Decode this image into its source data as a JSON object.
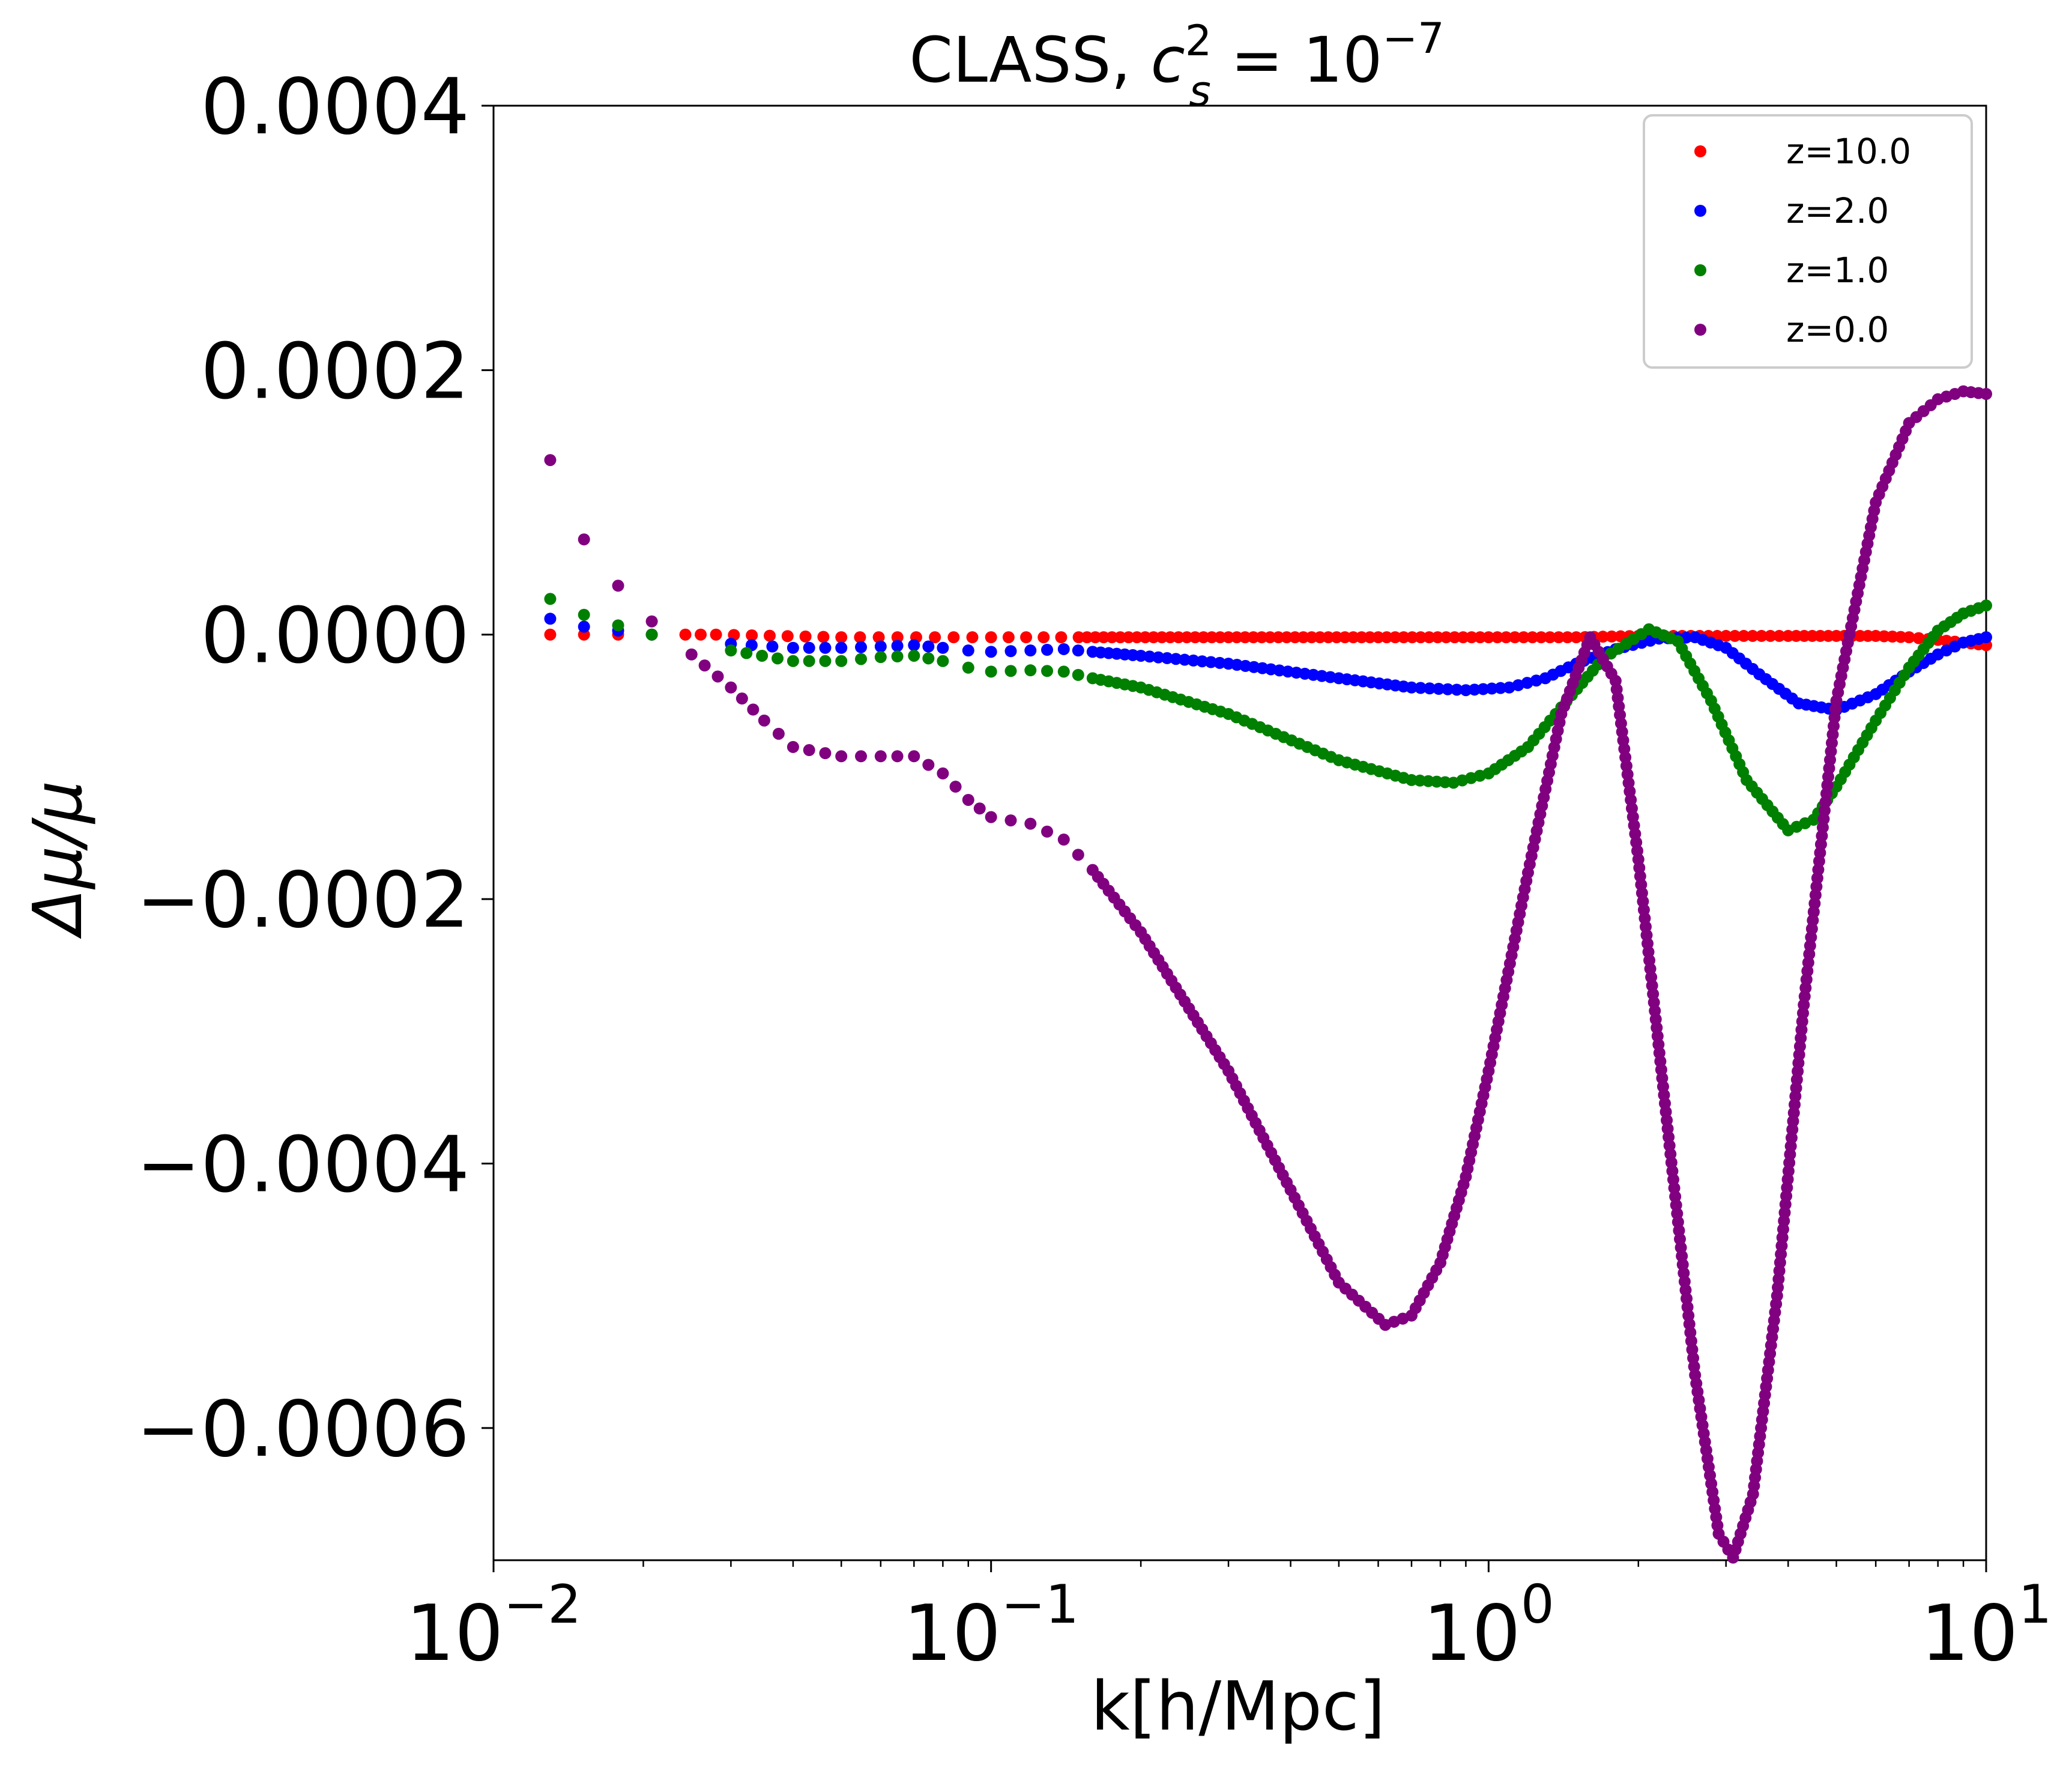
{
  "chart_data": {
    "type": "scatter",
    "title": "CLASS, c_s^2 = 10^-7",
    "title_parts": {
      "prefix": "CLASS, ",
      "var": "c",
      "sub": "s",
      "sup": "2",
      "eq": " = 10",
      "exp": "−7"
    },
    "xlabel": "k[h/Mpc]",
    "ylabel": "Δμ/μ",
    "x_scale": "log",
    "xlim": [
      0.01,
      10
    ],
    "ylim": [
      -0.0007,
      0.0004
    ],
    "y_ticks": [
      0.0004,
      0.0002,
      0.0,
      -0.0002,
      -0.0004,
      -0.0006
    ],
    "y_tick_labels": [
      "0.0004",
      "0.0002",
      "0.0000",
      "−0.0002",
      "−0.0004",
      "−0.0006"
    ],
    "x_ticks": [
      {
        "value": 0.01,
        "base": "10",
        "exp": "−2"
      },
      {
        "value": 0.1,
        "base": "10",
        "exp": "−1"
      },
      {
        "value": 1,
        "base": "10",
        "exp": "0"
      },
      {
        "value": 10,
        "base": "10",
        "exp": "1"
      }
    ],
    "legend_position": "top-right",
    "grid": false,
    "series": [
      {
        "name": "z=10.0",
        "color": "#ff0000",
        "points": [
          [
            0.013,
            0.0
          ],
          [
            0.0152,
            0.0
          ],
          [
            0.0178,
            0.0
          ],
          [
            0.0208,
            0.0
          ],
          [
            0.0243,
            0.0
          ],
          [
            0.028,
            0.0
          ],
          [
            0.05,
            -2e-06
          ],
          [
            0.1,
            -2e-06
          ],
          [
            0.15,
            -2e-06
          ],
          [
            0.3,
            -2e-06
          ],
          [
            0.6,
            -2e-06
          ],
          [
            1.0,
            -2e-06
          ],
          [
            1.5,
            -2e-06
          ],
          [
            2.0,
            -1e-06
          ],
          [
            3.0,
            -1e-06
          ],
          [
            4.0,
            -1e-06
          ],
          [
            5.0,
            -1e-06
          ],
          [
            6.0,
            -1e-06
          ],
          [
            7.0,
            -2e-06
          ],
          [
            8.0,
            -4e-06
          ],
          [
            9.0,
            -6e-06
          ],
          [
            10.0,
            -8e-06
          ]
        ]
      },
      {
        "name": "z=2.0",
        "color": "#0000ff",
        "points": [
          [
            0.013,
            1.2e-05
          ],
          [
            0.0152,
            6e-06
          ],
          [
            0.0178,
            3e-06
          ],
          [
            0.0208,
            0.0
          ],
          [
            0.03,
            -7e-06
          ],
          [
            0.04,
            -1e-05
          ],
          [
            0.05,
            -1e-05
          ],
          [
            0.06,
            -9e-06
          ],
          [
            0.07,
            -8e-06
          ],
          [
            0.08,
            -1e-05
          ],
          [
            0.09,
            -1.2e-05
          ],
          [
            0.1,
            -1.3e-05
          ],
          [
            0.12,
            -1.2e-05
          ],
          [
            0.14,
            -1.1e-05
          ],
          [
            0.16,
            -1.3e-05
          ],
          [
            0.2,
            -1.6e-05
          ],
          [
            0.3,
            -2.2e-05
          ],
          [
            0.5,
            -3.3e-05
          ],
          [
            0.7,
            -4e-05
          ],
          [
            0.9,
            -4.2e-05
          ],
          [
            1.1,
            -4e-05
          ],
          [
            1.3,
            -3.3e-05
          ],
          [
            1.5,
            -2.2e-05
          ],
          [
            1.8,
            -1.1e-05
          ],
          [
            2.2,
            -3e-06
          ],
          [
            2.6,
            -2e-06
          ],
          [
            3.0,
            -1e-05
          ],
          [
            3.5,
            -3e-05
          ],
          [
            4.2,
            -5.2e-05
          ],
          [
            5.0,
            -5.7e-05
          ],
          [
            6.0,
            -4.5e-05
          ],
          [
            7.0,
            -2.8e-05
          ],
          [
            8.0,
            -1.5e-05
          ],
          [
            9.0,
            -6e-06
          ],
          [
            10.0,
            -2e-06
          ]
        ]
      },
      {
        "name": "z=1.0",
        "color": "#008000",
        "points": [
          [
            0.013,
            2.7e-05
          ],
          [
            0.0152,
            1.5e-05
          ],
          [
            0.0178,
            7e-06
          ],
          [
            0.0208,
            0.0
          ],
          [
            0.03,
            -1.2e-05
          ],
          [
            0.04,
            -2e-05
          ],
          [
            0.05,
            -2e-05
          ],
          [
            0.06,
            -1.7e-05
          ],
          [
            0.07,
            -1.6e-05
          ],
          [
            0.08,
            -2e-05
          ],
          [
            0.09,
            -2.5e-05
          ],
          [
            0.1,
            -2.8e-05
          ],
          [
            0.12,
            -2.7e-05
          ],
          [
            0.14,
            -2.8e-05
          ],
          [
            0.16,
            -3.3e-05
          ],
          [
            0.2,
            -4e-05
          ],
          [
            0.3,
            -6e-05
          ],
          [
            0.5,
            -9.5e-05
          ],
          [
            0.7,
            -0.00011
          ],
          [
            0.85,
            -0.000112
          ],
          [
            1.0,
            -0.000105
          ],
          [
            1.2,
            -8.5e-05
          ],
          [
            1.4,
            -5.5e-05
          ],
          [
            1.7,
            -1.8e-05
          ],
          [
            2.1,
            4e-06
          ],
          [
            2.4,
            -5e-06
          ],
          [
            2.8,
            -5e-05
          ],
          [
            3.3,
            -0.00011
          ],
          [
            4.0,
            -0.000148
          ],
          [
            4.5,
            -0.00014
          ],
          [
            5.0,
            -0.000115
          ],
          [
            6.0,
            -6.5e-05
          ],
          [
            7.0,
            -2.5e-05
          ],
          [
            8.0,
            3e-06
          ],
          [
            9.0,
            1.6e-05
          ],
          [
            10.0,
            2.2e-05
          ]
        ]
      },
      {
        "name": "z=0.0",
        "color": "#800080",
        "points": [
          [
            0.013,
            0.000132
          ],
          [
            0.0152,
            7.2e-05
          ],
          [
            0.0178,
            3.7e-05
          ],
          [
            0.0208,
            1e-05
          ],
          [
            0.025,
            -1.5e-05
          ],
          [
            0.03,
            -4e-05
          ],
          [
            0.035,
            -6.5e-05
          ],
          [
            0.04,
            -8.5e-05
          ],
          [
            0.05,
            -9.2e-05
          ],
          [
            0.06,
            -9.2e-05
          ],
          [
            0.07,
            -9.2e-05
          ],
          [
            0.08,
            -0.000105
          ],
          [
            0.09,
            -0.000125
          ],
          [
            0.1,
            -0.000138
          ],
          [
            0.12,
            -0.000143
          ],
          [
            0.14,
            -0.000155
          ],
          [
            0.16,
            -0.000178
          ],
          [
            0.2,
            -0.000225
          ],
          [
            0.3,
            -0.00033
          ],
          [
            0.4,
            -0.00042
          ],
          [
            0.5,
            -0.00049
          ],
          [
            0.62,
            -0.000522
          ],
          [
            0.7,
            -0.000515
          ],
          [
            0.8,
            -0.000475
          ],
          [
            0.9,
            -0.00041
          ],
          [
            1.0,
            -0.00033
          ],
          [
            1.2,
            -0.00018
          ],
          [
            1.4,
            -6e-05
          ],
          [
            1.6,
            -2e-06
          ],
          [
            1.8,
            -3.5e-05
          ],
          [
            2.0,
            -0.00017
          ],
          [
            2.3,
            -0.00038
          ],
          [
            2.6,
            -0.00056
          ],
          [
            2.9,
            -0.00068
          ],
          [
            3.1,
            -0.000698
          ],
          [
            3.4,
            -0.00065
          ],
          [
            3.8,
            -0.0005
          ],
          [
            4.3,
            -0.00028
          ],
          [
            5.0,
            -5e-05
          ],
          [
            6.0,
            0.0001
          ],
          [
            7.0,
            0.00016
          ],
          [
            8.0,
            0.000178
          ],
          [
            9.0,
            0.000184
          ],
          [
            10.0,
            0.000182
          ]
        ]
      }
    ]
  }
}
